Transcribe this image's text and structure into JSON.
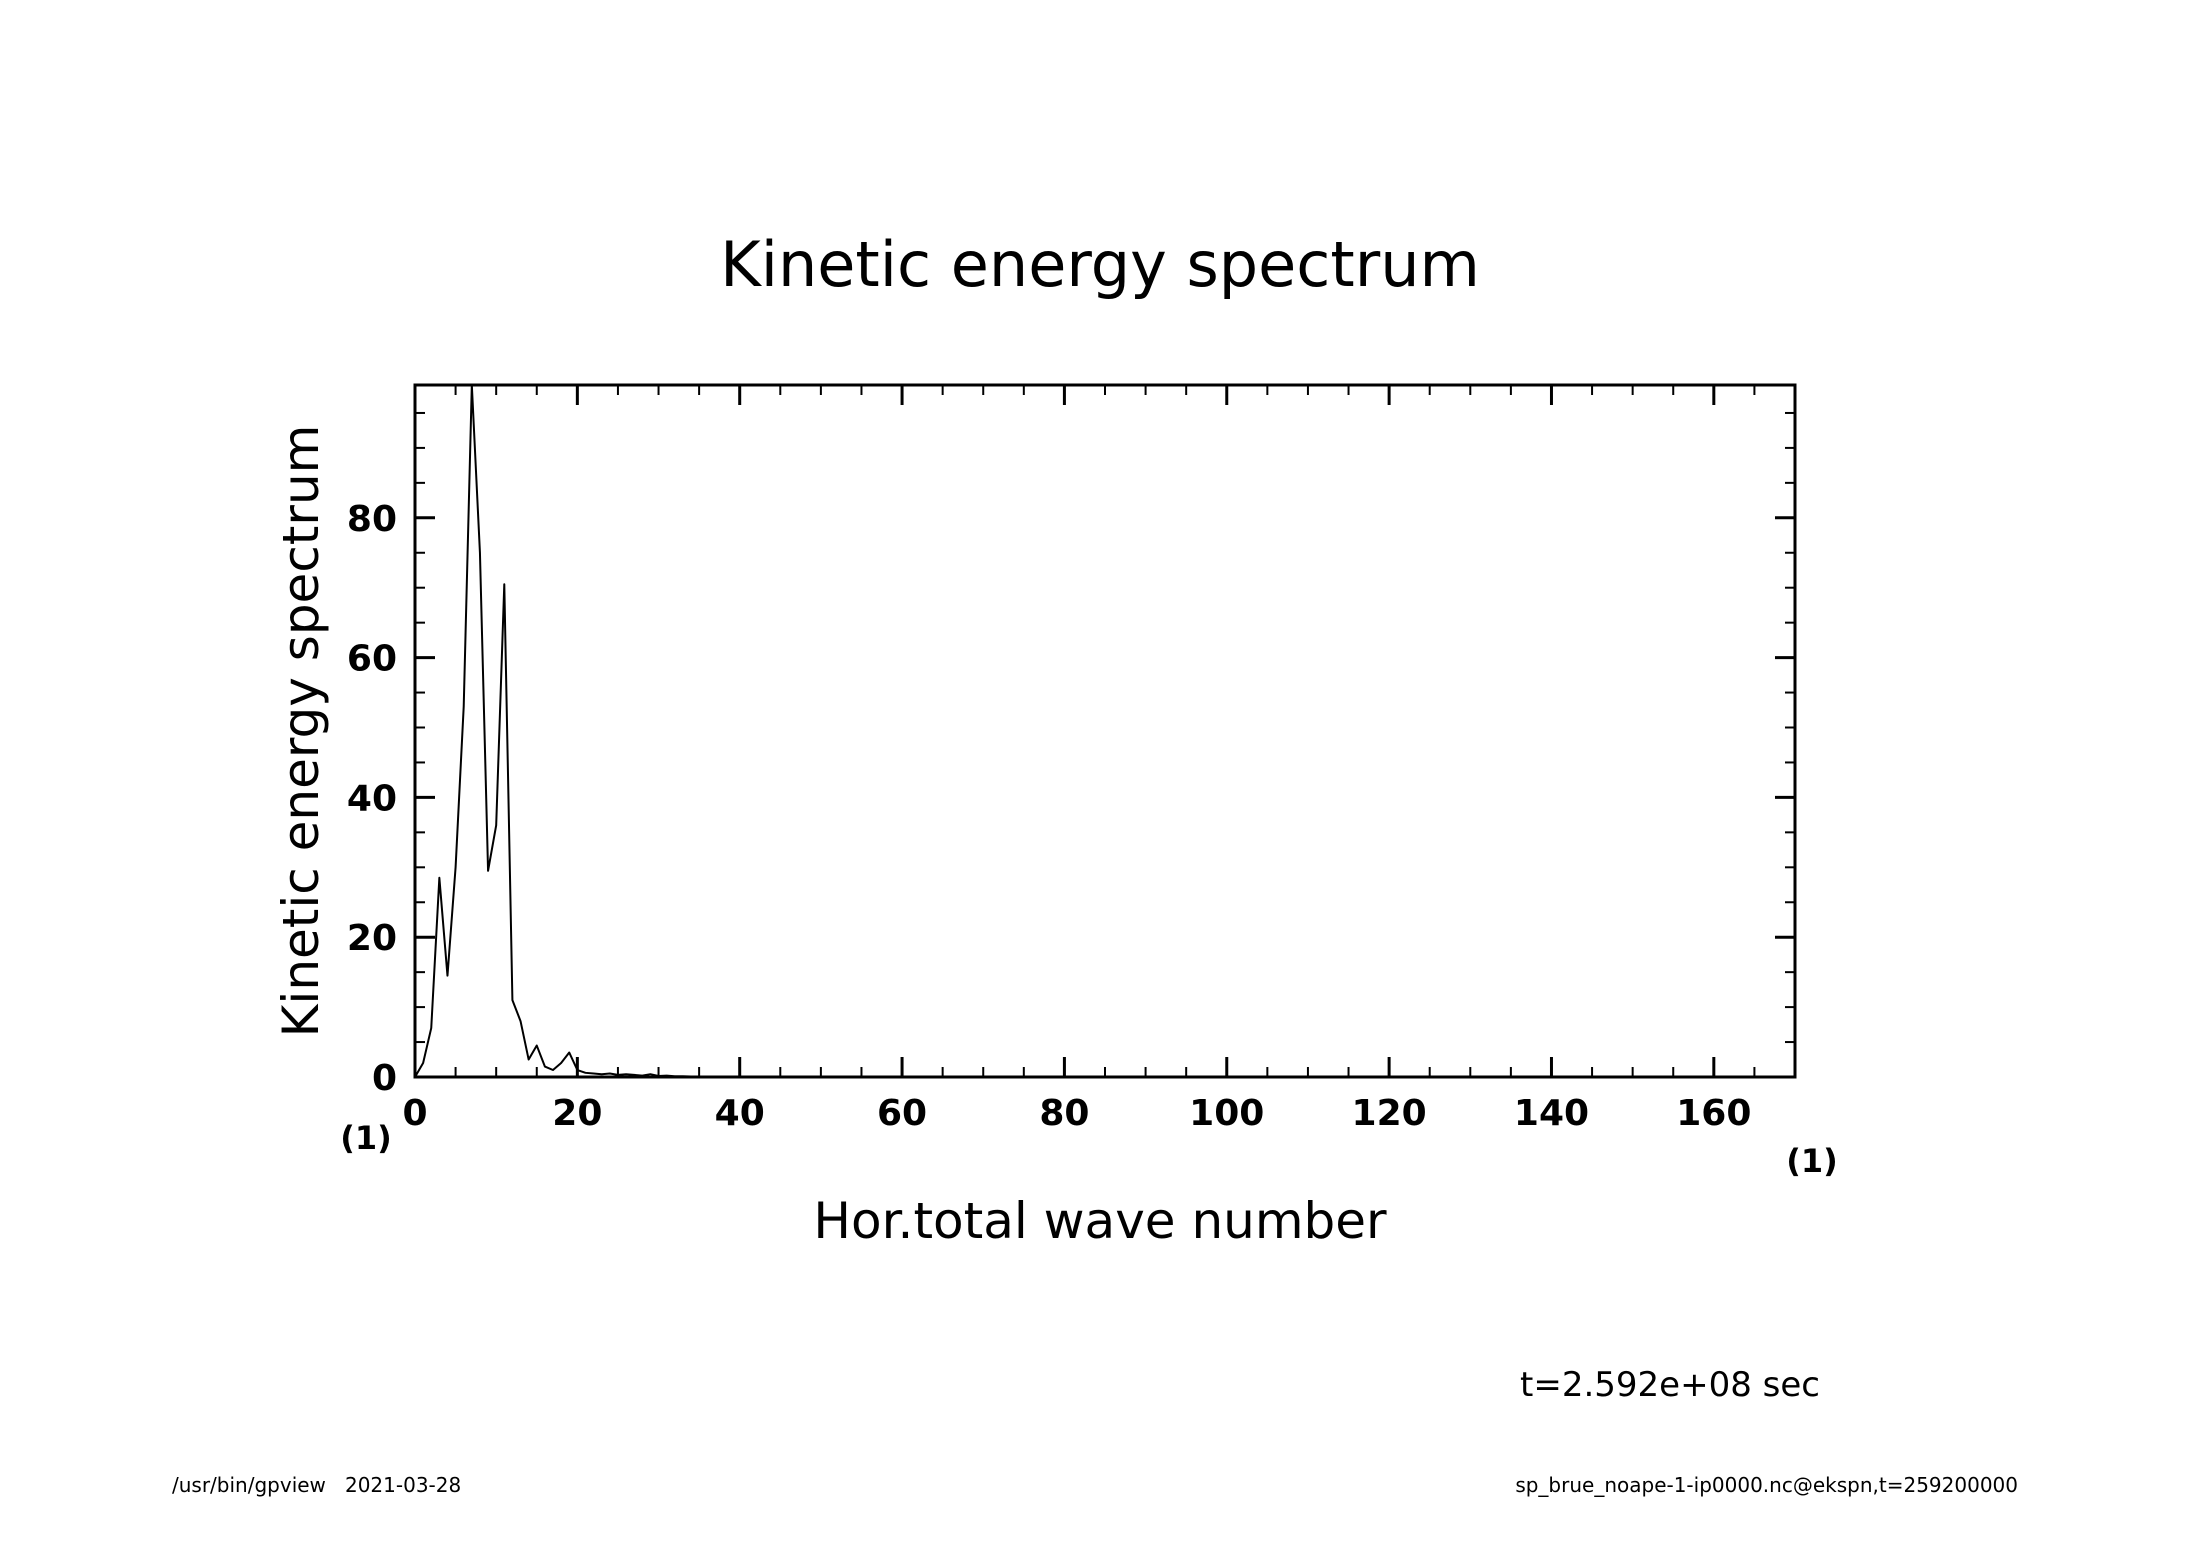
{
  "chart_data": {
    "type": "line",
    "title": "Kinetic energy spectrum",
    "xlabel": "Hor.total wave number",
    "ylabel": "Kinetic energy spectrum",
    "x_unit": "(1)",
    "y_unit": "(1)",
    "xlim": [
      0,
      170
    ],
    "ylim": [
      0,
      99
    ],
    "x_major_ticks": [
      0,
      20,
      40,
      60,
      80,
      100,
      120,
      140,
      160
    ],
    "x_tick_labels": [
      "0",
      "20",
      "40",
      "60",
      "80",
      "100",
      "120",
      "140",
      "160"
    ],
    "x_minor_step": 5,
    "y_major_ticks": [
      0,
      20,
      40,
      60,
      80
    ],
    "y_tick_labels": [
      "0",
      "20",
      "40",
      "60",
      "80"
    ],
    "y_minor_step": 5,
    "grid": false,
    "series": [
      {
        "name": "Kinetic energy spectrum",
        "x": [
          0,
          1,
          2,
          3,
          4,
          5,
          6,
          7,
          8,
          9,
          10,
          11,
          12,
          13,
          14,
          15,
          16,
          17,
          18,
          19,
          20,
          21,
          22,
          23,
          24,
          25,
          26,
          27,
          28,
          29,
          30,
          31,
          32,
          33,
          34,
          35,
          36,
          37,
          38,
          39,
          40,
          45,
          50,
          60,
          80,
          100,
          120,
          140,
          160,
          170
        ],
        "values": [
          0,
          2,
          7,
          28.5,
          14.5,
          30,
          53,
          99,
          75,
          29.5,
          36,
          70.5,
          11,
          8,
          2.5,
          4.5,
          1.5,
          1,
          2,
          3.5,
          1,
          0.6,
          0.5,
          0.4,
          0.5,
          0.3,
          0.4,
          0.3,
          0.2,
          0.4,
          0.15,
          0.2,
          0.1,
          0.1,
          0.08,
          0.06,
          0.05,
          0.04,
          0.03,
          0.03,
          0.02,
          0.01,
          0.01,
          0,
          0,
          0,
          0,
          0,
          0,
          0
        ]
      }
    ]
  },
  "annotations": {
    "time": "t=2.592e+08 sec"
  },
  "footer": {
    "left": "/usr/bin/gpview   2021-03-28",
    "right": "sp_brue_noape-1-ip0000.nc@ekspn,t=259200000"
  },
  "colors": {
    "line": "#000000",
    "background": "#ffffff"
  }
}
